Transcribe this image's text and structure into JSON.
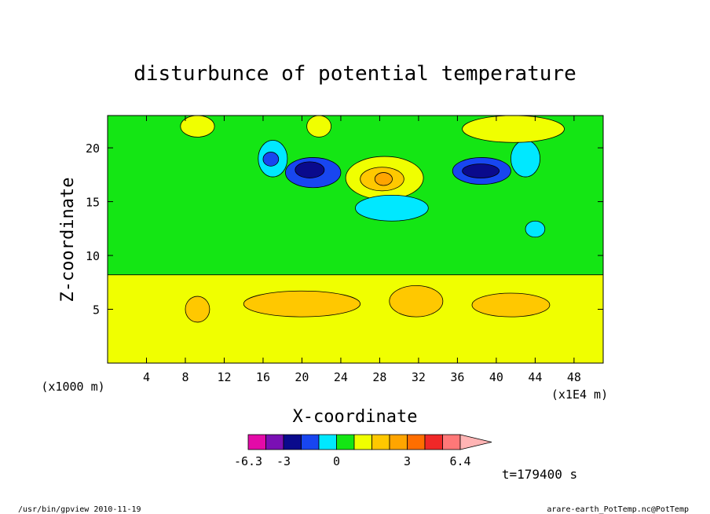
{
  "chart_data": {
    "type": "heatmap",
    "title": "disturbunce of potential temperature",
    "xlabel": "X-coordinate",
    "ylabel": "Z-coordinate",
    "x_unit": "(x1E4 m)",
    "y_unit": "(x1000 m)",
    "xlim": [
      0,
      51
    ],
    "ylim": [
      0,
      23
    ],
    "x_ticks": [
      4,
      8,
      12,
      16,
      20,
      24,
      28,
      32,
      36,
      40,
      44,
      48
    ],
    "y_ticks": [
      5,
      10,
      15,
      20
    ],
    "colorbar": {
      "colors": [
        "#e40aa8",
        "#7a10b4",
        "#0a0a8c",
        "#1846f0",
        "#00e8ff",
        "#14e614",
        "#f0ff00",
        "#ffc800",
        "#ffa500",
        "#ff6e00",
        "#f02828",
        "#ff7878",
        "#ffb4b4"
      ],
      "labels": [
        "-6.3",
        "-3",
        "0",
        "3",
        "6.4"
      ]
    },
    "annotation": "t=179400 s",
    "regions": [
      {
        "level": "0to1",
        "x": [
          0,
          51
        ],
        "y": [
          0,
          8.2
        ]
      },
      {
        "level": "0to-1",
        "x": [
          0,
          51
        ],
        "y": [
          8.2,
          23
        ]
      },
      {
        "level": "0to1",
        "x": [
          24.5,
          32.5
        ],
        "y": [
          15.2,
          19.2
        ]
      },
      {
        "level": "1to2",
        "x": [
          26,
          30.5
        ],
        "y": [
          16,
          18.2
        ]
      },
      {
        "level": "2to3",
        "x": [
          27.5,
          29.3
        ],
        "y": [
          16.5,
          17.7
        ]
      },
      {
        "level": "-1to-2",
        "x": [
          25.5,
          33
        ],
        "y": [
          13.2,
          15.6
        ]
      },
      {
        "level": "-2to-3",
        "x": [
          18.3,
          24
        ],
        "y": [
          16.3,
          19.1
        ]
      },
      {
        "level": "-3to-4",
        "x": [
          19.3,
          22.3
        ],
        "y": [
          17.2,
          18.7
        ]
      },
      {
        "level": "-2to-3",
        "x": [
          35.5,
          41.5
        ],
        "y": [
          16.6,
          19.1
        ]
      },
      {
        "level": "-3to-4",
        "x": [
          36.5,
          40.3
        ],
        "y": [
          17.2,
          18.5
        ]
      },
      {
        "level": "-1to-2",
        "x": [
          15.5,
          18.5
        ],
        "y": [
          17.3,
          20.7
        ]
      },
      {
        "level": "-2to-3",
        "x": [
          16,
          17.6
        ],
        "y": [
          18.3,
          19.6
        ]
      },
      {
        "level": "-1to-2",
        "x": [
          41.5,
          44.5
        ],
        "y": [
          17.3,
          20.7
        ]
      },
      {
        "level": "-1to-2",
        "x": [
          43,
          45
        ],
        "y": [
          11.7,
          13.2
        ]
      },
      {
        "level": "1to2",
        "x": [
          14,
          26
        ],
        "y": [
          4.3,
          6.7
        ]
      },
      {
        "level": "1to2",
        "x": [
          29,
          34.5
        ],
        "y": [
          4.3,
          7.2
        ]
      },
      {
        "level": "1to2",
        "x": [
          37.5,
          45.5
        ],
        "y": [
          4.3,
          6.5
        ]
      },
      {
        "level": "1to2",
        "x": [
          8,
          10.5
        ],
        "y": [
          3.8,
          6.2
        ]
      },
      {
        "level": "0to1",
        "x": [
          7.5,
          11
        ],
        "y": [
          21,
          23
        ]
      },
      {
        "level": "0to1",
        "x": [
          20.5,
          23
        ],
        "y": [
          21,
          23
        ]
      },
      {
        "level": "0to1",
        "x": [
          36.5,
          47
        ],
        "y": [
          20.5,
          23
        ]
      }
    ]
  },
  "footer": {
    "left": "/usr/bin/gpview  2010-11-19",
    "right": "arare-earth_PotTemp.nc@PotTemp"
  }
}
